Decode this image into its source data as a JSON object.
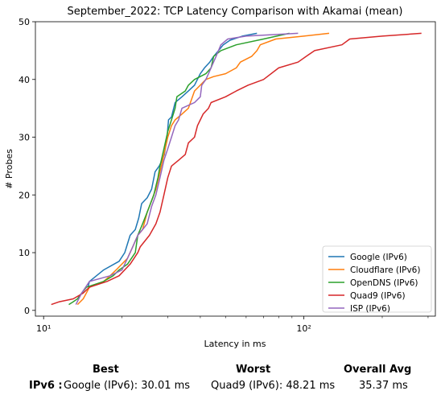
{
  "chart_data": {
    "type": "line",
    "title": "September_2022: TCP Latency Comparison with Akamai (mean)",
    "xlabel": "Latency in ms",
    "ylabel": "# Probes",
    "xscale": "log",
    "xlim": [
      9.3,
      320
    ],
    "ylim": [
      -1,
      50
    ],
    "x_ticks": [
      {
        "value": 10,
        "label": "10¹"
      },
      {
        "value": 100,
        "label": "10²"
      }
    ],
    "y_ticks": [
      0,
      10,
      20,
      30,
      40,
      50
    ],
    "legend_position": "lower-right",
    "series": [
      {
        "name": "Google (IPv6)",
        "color": "#1f77b4",
        "points": [
          [
            14.8,
            4
          ],
          [
            15,
            5
          ],
          [
            17,
            7
          ],
          [
            19.5,
            8.5
          ],
          [
            20.5,
            10
          ],
          [
            21.5,
            13
          ],
          [
            22.5,
            14
          ],
          [
            23.2,
            16
          ],
          [
            23.8,
            18.5
          ],
          [
            25,
            19.5
          ],
          [
            26,
            21
          ],
          [
            26.8,
            24
          ],
          [
            27.8,
            25
          ],
          [
            28.5,
            26
          ],
          [
            29.1,
            27
          ],
          [
            29.8,
            30
          ],
          [
            30.2,
            33
          ],
          [
            31,
            33.5
          ],
          [
            32,
            36
          ],
          [
            34,
            37
          ],
          [
            36,
            38
          ],
          [
            38,
            39
          ],
          [
            40,
            41
          ],
          [
            41.5,
            42
          ],
          [
            43.5,
            43
          ],
          [
            45,
            44
          ],
          [
            47,
            45
          ],
          [
            49,
            46
          ],
          [
            52,
            46.8
          ],
          [
            58,
            47.5
          ],
          [
            66,
            48
          ]
        ]
      },
      {
        "name": "Cloudflare (IPv6)",
        "color": "#ff7f0e",
        "points": [
          [
            13.5,
            1
          ],
          [
            14.2,
            2
          ],
          [
            14.6,
            3
          ],
          [
            15,
            4
          ],
          [
            17,
            5
          ],
          [
            18,
            6
          ],
          [
            19,
            7
          ],
          [
            21,
            9
          ],
          [
            22,
            11
          ],
          [
            23,
            13
          ],
          [
            24,
            14
          ],
          [
            25,
            17
          ],
          [
            26,
            19
          ],
          [
            27,
            21
          ],
          [
            28,
            24
          ],
          [
            29,
            27
          ],
          [
            30,
            30
          ],
          [
            31,
            32
          ],
          [
            32,
            33
          ],
          [
            34,
            34
          ],
          [
            36,
            35
          ],
          [
            38,
            38
          ],
          [
            40,
            39
          ],
          [
            42,
            40
          ],
          [
            45,
            40.5
          ],
          [
            50,
            41
          ],
          [
            55,
            42
          ],
          [
            57,
            43
          ],
          [
            63,
            44
          ],
          [
            66,
            45
          ],
          [
            68,
            46
          ],
          [
            78,
            47
          ],
          [
            100,
            47.5
          ],
          [
            125,
            48
          ]
        ]
      },
      {
        "name": "OpenDNS (IPv6)",
        "color": "#2ca02c",
        "points": [
          [
            12.5,
            1
          ],
          [
            13,
            1.5
          ],
          [
            13.5,
            2
          ],
          [
            14,
            3
          ],
          [
            14.6,
            4
          ],
          [
            17,
            5
          ],
          [
            18.5,
            6
          ],
          [
            19.5,
            7
          ],
          [
            21,
            8
          ],
          [
            22.5,
            10
          ],
          [
            23,
            13
          ],
          [
            24,
            15
          ],
          [
            25,
            17
          ],
          [
            26.5,
            20
          ],
          [
            27.5,
            23
          ],
          [
            28,
            25
          ],
          [
            29,
            28
          ],
          [
            30,
            31
          ],
          [
            31,
            33
          ],
          [
            32,
            35
          ],
          [
            32.5,
            37
          ],
          [
            35,
            38
          ],
          [
            36,
            39
          ],
          [
            38,
            40
          ],
          [
            42,
            41
          ],
          [
            44,
            42
          ],
          [
            45,
            44
          ],
          [
            48,
            45
          ],
          [
            55,
            46
          ],
          [
            70,
            47
          ],
          [
            88,
            48
          ]
        ]
      },
      {
        "name": "Quad9 (IPv6)",
        "color": "#d62728",
        "points": [
          [
            10.7,
            1
          ],
          [
            11.5,
            1.5
          ],
          [
            13,
            2
          ],
          [
            14.2,
            3
          ],
          [
            15,
            4
          ],
          [
            17.5,
            5
          ],
          [
            19.5,
            6
          ],
          [
            21.5,
            8
          ],
          [
            23,
            10
          ],
          [
            23.5,
            11
          ],
          [
            25.5,
            13
          ],
          [
            27,
            15
          ],
          [
            28,
            17
          ],
          [
            29,
            20
          ],
          [
            30,
            23
          ],
          [
            31,
            25
          ],
          [
            33,
            26
          ],
          [
            35,
            27
          ],
          [
            36,
            29
          ],
          [
            38,
            30
          ],
          [
            39,
            32
          ],
          [
            40,
            33
          ],
          [
            41,
            34
          ],
          [
            43,
            35
          ],
          [
            44,
            36
          ],
          [
            50,
            37
          ],
          [
            55,
            38
          ],
          [
            61,
            39
          ],
          [
            70,
            40
          ],
          [
            80,
            42
          ],
          [
            95,
            43
          ],
          [
            102,
            44
          ],
          [
            110,
            45
          ],
          [
            140,
            46
          ],
          [
            150,
            47
          ],
          [
            200,
            47.5
          ],
          [
            283,
            48
          ]
        ]
      },
      {
        "name": "ISP (IPv6)",
        "color": "#9467bd",
        "points": [
          [
            13.3,
            1
          ],
          [
            14,
            3
          ],
          [
            14.5,
            4
          ],
          [
            15,
            5
          ],
          [
            18,
            6
          ],
          [
            20,
            7
          ],
          [
            21,
            9
          ],
          [
            22,
            11
          ],
          [
            23,
            13
          ],
          [
            24,
            14
          ],
          [
            25,
            15
          ],
          [
            26,
            18
          ],
          [
            27,
            20
          ],
          [
            28,
            23
          ],
          [
            29,
            26
          ],
          [
            30,
            28
          ],
          [
            31,
            30
          ],
          [
            32,
            32
          ],
          [
            33,
            33
          ],
          [
            34,
            35
          ],
          [
            38,
            36
          ],
          [
            40,
            37
          ],
          [
            40.5,
            39
          ],
          [
            42,
            40
          ],
          [
            43,
            41
          ],
          [
            46,
            44
          ],
          [
            48,
            46
          ],
          [
            51,
            47
          ],
          [
            60,
            47.5
          ],
          [
            95,
            48
          ]
        ]
      }
    ],
    "legend": [
      "Google (IPv6)",
      "Cloudflare (IPv6)",
      "OpenDNS (IPv6)",
      "Quad9 (IPv6)",
      "ISP (IPv6)"
    ]
  },
  "stats": {
    "best_header": "Best",
    "worst_header": "Worst",
    "avg_header": "Overall Avg",
    "row_label": "IPv6 :",
    "best_value": "Google (IPv6): 30.01 ms",
    "worst_value": "Quad9 (IPv6): 48.21 ms",
    "avg_value": "35.37 ms"
  }
}
